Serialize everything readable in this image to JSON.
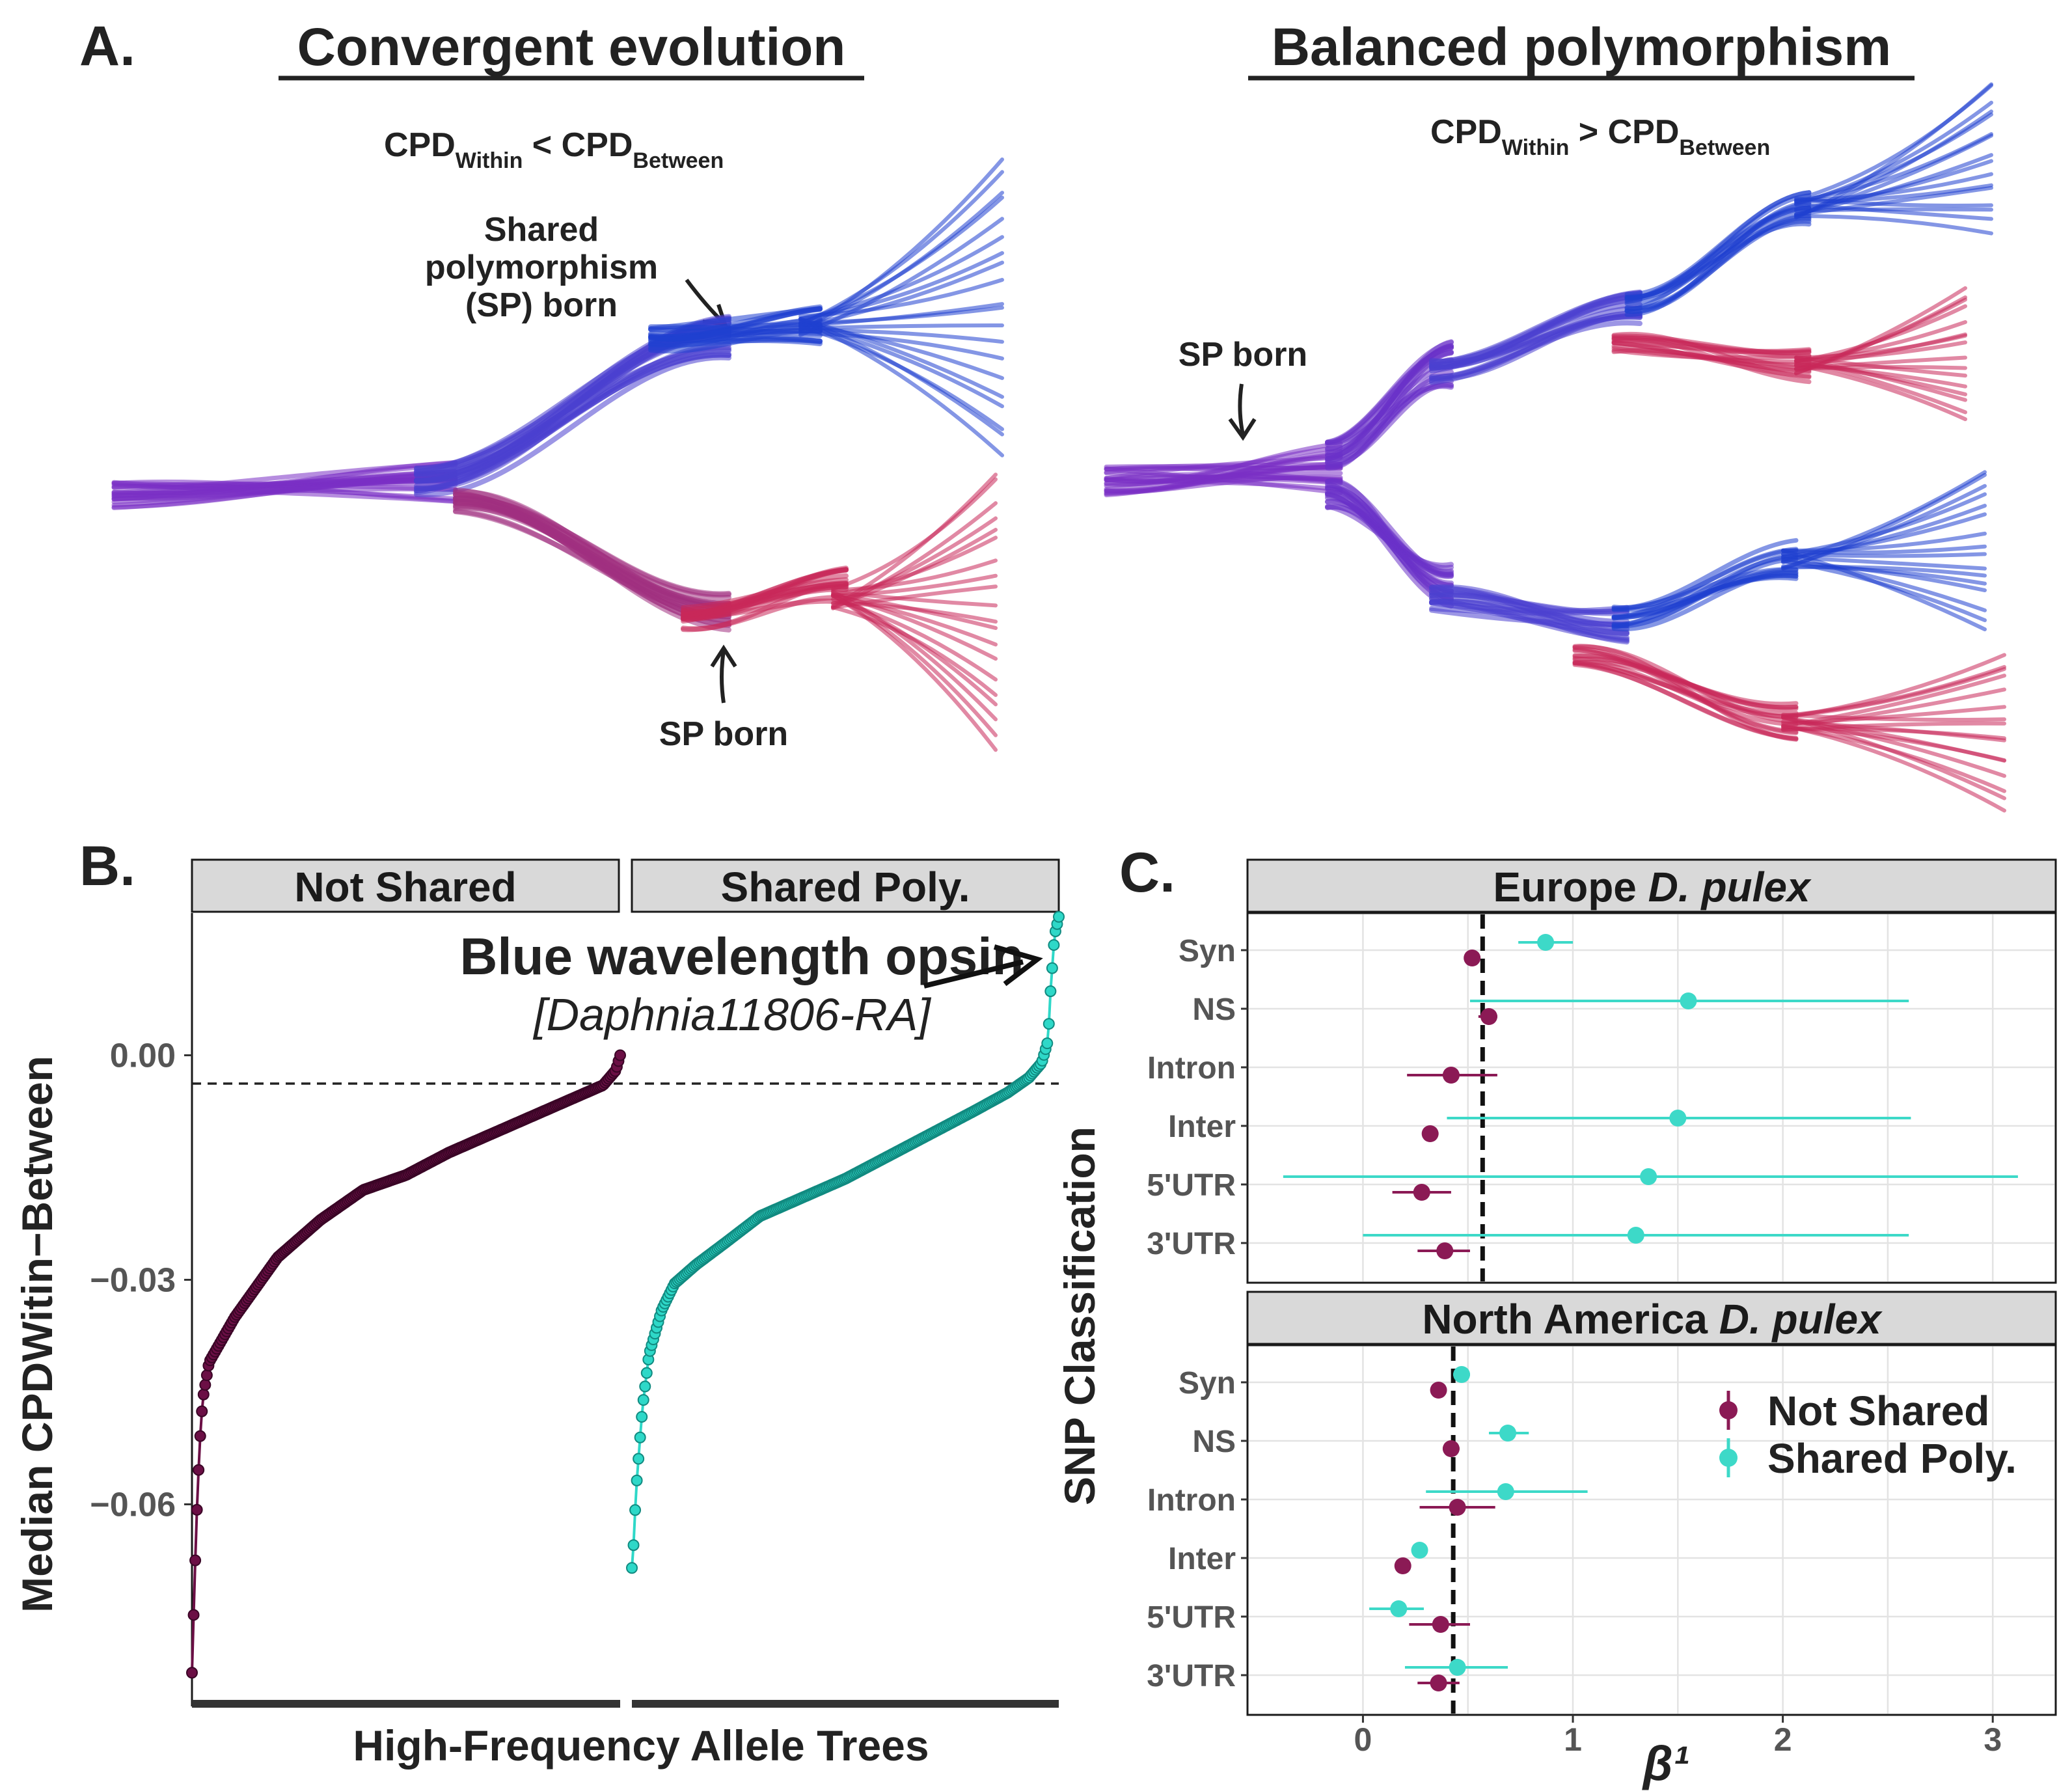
{
  "panel_a": {
    "letter": "A.",
    "left_title": "Convergent evolution",
    "right_title": "Balanced polymorphism",
    "left_formula": {
      "a": "CPD",
      "a_sub": "Within",
      "op": " < ",
      "b": "CPD",
      "b_sub": "Between"
    },
    "right_formula": {
      "a": "CPD",
      "a_sub": "Within",
      "op": " > ",
      "b": "CPD",
      "b_sub": "Between"
    },
    "left_annotation_lines": [
      "Shared",
      "polymorphism",
      "(SP) born"
    ],
    "left_sp_born": "SP born",
    "right_sp_born": "SP born",
    "colors": {
      "ancestral": "#7a2fc4",
      "blue": "#1f3fcf",
      "red": "#c8285a"
    }
  },
  "panel_b": {
    "letter": "B.",
    "facets": [
      "Not Shared",
      "Shared Poly."
    ],
    "ylabel": "Median CPDWitin−Between",
    "xlabel": "High-Frequency Allele Trees",
    "yticks": [
      "0.00",
      "−0.03",
      "−0.06"
    ],
    "annotation_title": "Blue wavelength opsin",
    "annotation_subtitle": "[Daphnia11806-RA]",
    "colors": {
      "not_shared": "#6b0f45",
      "shared": "#2ed8c8"
    }
  },
  "panel_c": {
    "letter": "C.",
    "facets": [
      {
        "prefix": "Europe ",
        "italic": "D. pulex"
      },
      {
        "prefix": "North America ",
        "italic": "D. pulex"
      }
    ],
    "ylabel": "SNP Classification",
    "xlabel": "β¹",
    "xticks": [
      "0",
      "1",
      "2",
      "3"
    ],
    "categories": [
      "Syn",
      "NS",
      "Intron",
      "Inter",
      "5'UTR",
      "3'UTR"
    ],
    "legend": [
      "Not Shared",
      "Shared Poly."
    ],
    "colors": {
      "not_shared": "#8b1a55",
      "shared": "#3dd9c8"
    }
  },
  "chart_data": [
    {
      "type": "scatter",
      "panel": "B",
      "ylabel": "Median CPDWitin−Between",
      "xlabel": "High-Frequency Allele Trees",
      "ylim": [
        -0.087,
        0.019
      ],
      "hline": 0,
      "series": [
        {
          "name": "Not Shared",
          "anchors": [
            [
              0,
              -0.0825
            ],
            [
              0.006,
              -0.0705
            ],
            [
              0.012,
              -0.06
            ],
            [
              0.018,
              -0.052
            ],
            [
              0.025,
              -0.046
            ],
            [
              0.04,
              -0.041
            ],
            [
              0.07,
              -0.038
            ],
            [
              0.1,
              -0.035
            ],
            [
              0.15,
              -0.031
            ],
            [
              0.2,
              -0.027
            ],
            [
              0.3,
              -0.022
            ],
            [
              0.4,
              -0.018
            ],
            [
              0.5,
              -0.016
            ],
            [
              0.6,
              -0.013
            ],
            [
              0.7,
              -0.0105
            ],
            [
              0.8,
              -0.008
            ],
            [
              0.9,
              -0.0055
            ],
            [
              0.96,
              -0.004
            ],
            [
              0.99,
              -0.002
            ],
            [
              1.0,
              0.0
            ]
          ]
        },
        {
          "name": "Shared Poly.",
          "anchors": [
            [
              0,
              -0.0685
            ],
            [
              0.003,
              -0.0665
            ],
            [
              0.01,
              -0.058
            ],
            [
              0.018,
              -0.052
            ],
            [
              0.025,
              -0.047
            ],
            [
              0.04,
              -0.04
            ],
            [
              0.07,
              -0.034
            ],
            [
              0.1,
              -0.0305
            ],
            [
              0.15,
              -0.028
            ],
            [
              0.22,
              -0.025
            ],
            [
              0.3,
              -0.0215
            ],
            [
              0.4,
              -0.019
            ],
            [
              0.5,
              -0.0165
            ],
            [
              0.6,
              -0.0135
            ],
            [
              0.7,
              -0.0105
            ],
            [
              0.8,
              -0.0075
            ],
            [
              0.88,
              -0.005
            ],
            [
              0.93,
              -0.003
            ],
            [
              0.96,
              -0.001
            ],
            [
              0.975,
              0.002
            ],
            [
              0.98,
              0.008
            ],
            [
              0.985,
              0.012
            ],
            [
              0.99,
              0.016
            ],
            [
              1.0,
              0.0185
            ]
          ]
        }
      ]
    },
    {
      "type": "scatter",
      "panel": "C",
      "facet": "Europe D. pulex",
      "xlabel": "β¹",
      "xlim": [
        -0.55,
        3.3
      ],
      "vline": 0.57,
      "categories": [
        "Syn",
        "NS",
        "Intron",
        "Inter",
        "5'UTR",
        "3'UTR"
      ],
      "series": [
        {
          "name": "Not Shared",
          "values": [
            0.52,
            0.6,
            0.42,
            0.32,
            0.28,
            0.39
          ],
          "lower": [
            0.49,
            0.55,
            0.21,
            0.29,
            0.14,
            0.26
          ],
          "upper": [
            0.55,
            0.64,
            0.64,
            0.36,
            0.42,
            0.51
          ]
        },
        {
          "name": "Shared Poly.",
          "values": [
            0.87,
            1.55,
            null,
            1.5,
            1.36,
            1.3
          ],
          "lower": [
            0.74,
            0.51,
            null,
            0.4,
            -0.38,
            0.0
          ],
          "upper": [
            1.0,
            2.6,
            null,
            2.61,
            3.12,
            2.6
          ]
        }
      ]
    },
    {
      "type": "scatter",
      "panel": "C",
      "facet": "North America D. pulex",
      "xlabel": "β¹",
      "xlim": [
        -0.55,
        3.3
      ],
      "vline": 0.43,
      "categories": [
        "Syn",
        "NS",
        "Intron",
        "Inter",
        "5'UTR",
        "3'UTR"
      ],
      "series": [
        {
          "name": "Not Shared",
          "values": [
            0.36,
            0.42,
            0.45,
            0.19,
            0.37,
            0.36
          ],
          "lower": [
            0.34,
            0.38,
            0.27,
            0.17,
            0.22,
            0.26
          ],
          "upper": [
            0.38,
            0.46,
            0.63,
            0.21,
            0.51,
            0.46
          ]
        },
        {
          "name": "Shared Poly.",
          "values": [
            0.47,
            0.69,
            0.68,
            0.27,
            0.17,
            0.45
          ],
          "lower": [
            0.43,
            0.6,
            0.3,
            0.24,
            0.03,
            0.2
          ],
          "upper": [
            0.51,
            0.79,
            1.07,
            0.3,
            0.29,
            0.69
          ]
        }
      ]
    }
  ]
}
